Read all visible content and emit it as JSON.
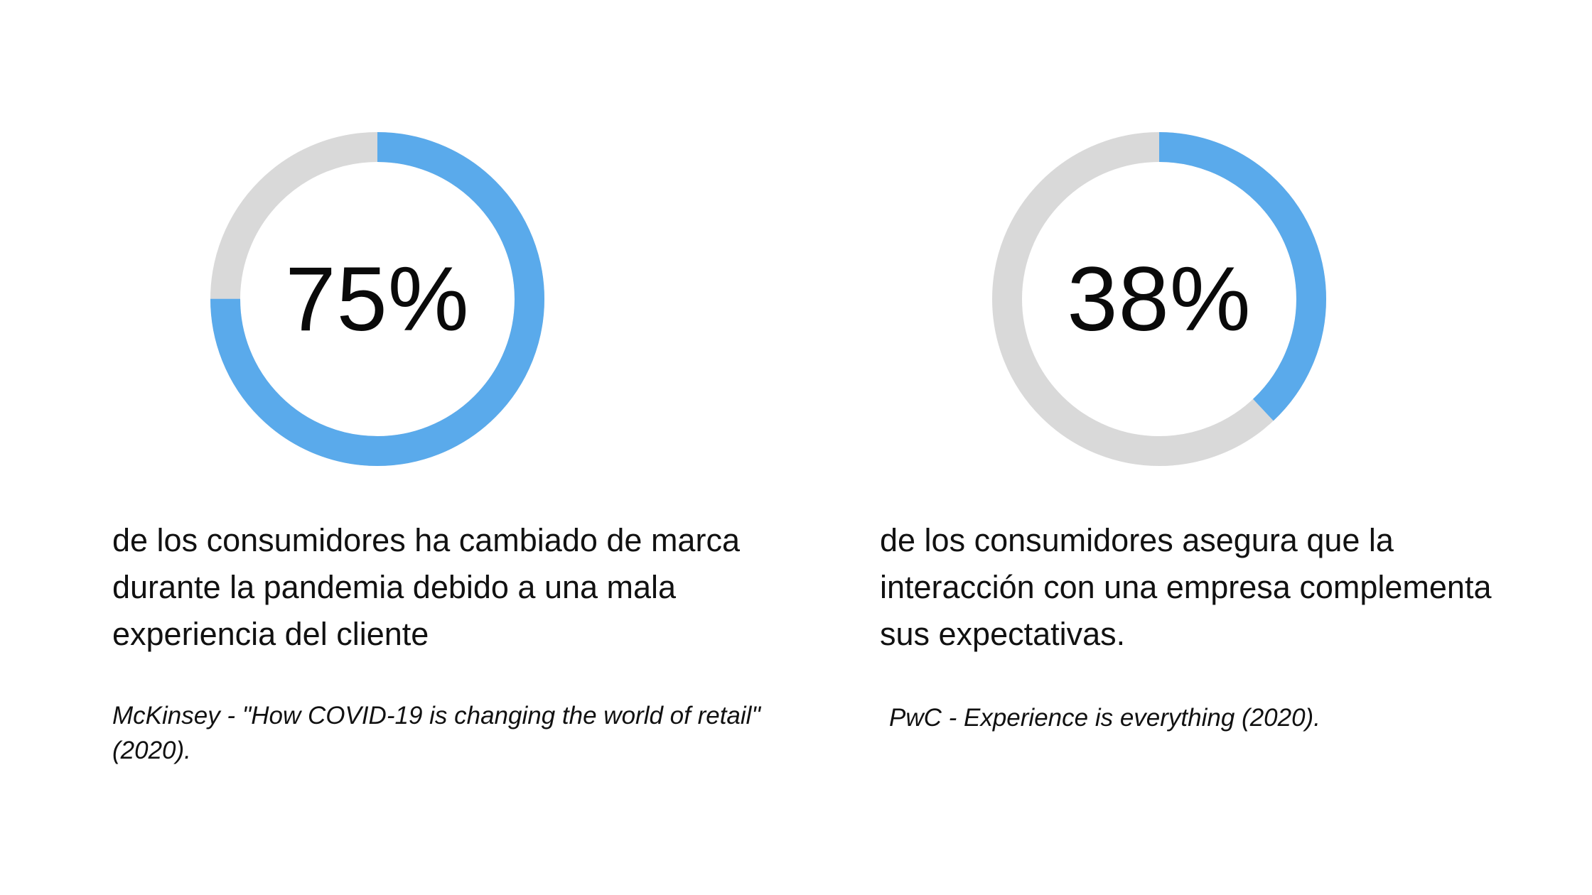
{
  "colors": {
    "progress": "#5aaaeb",
    "track": "#d9d9d9",
    "text": "#111111",
    "background": "#ffffff"
  },
  "chart_data": [
    {
      "type": "donut",
      "value": 75,
      "max": 100,
      "label": "75%",
      "description": "de los consumidores ha cambiado de marca durante la pandemia debido a una mala experiencia del cliente",
      "source": "McKinsey - \"How COVID-19 is changing the world of retail\" (2020)."
    },
    {
      "type": "donut",
      "value": 38,
      "max": 100,
      "label": "38%",
      "description": "de los consumidores asegura que la interacción con una empresa complementa sus expectativas.",
      "source": "PwC - Experience is everything (2020)."
    }
  ]
}
